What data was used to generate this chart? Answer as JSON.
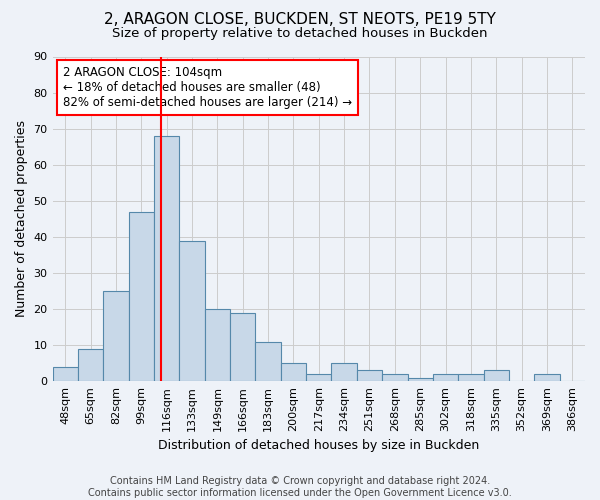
{
  "title": "2, ARAGON CLOSE, BUCKDEN, ST NEOTS, PE19 5TY",
  "subtitle": "Size of property relative to detached houses in Buckden",
  "xlabel": "Distribution of detached houses by size in Buckden",
  "ylabel": "Number of detached properties",
  "bar_values": [
    4,
    9,
    25,
    47,
    68,
    39,
    20,
    19,
    11,
    5,
    2,
    5,
    3,
    2,
    1,
    2,
    2,
    3,
    0,
    2,
    0
  ],
  "bin_labels": [
    "48sqm",
    "65sqm",
    "82sqm",
    "99sqm",
    "116sqm",
    "133sqm",
    "149sqm",
    "166sqm",
    "183sqm",
    "200sqm",
    "217sqm",
    "234sqm",
    "251sqm",
    "268sqm",
    "285sqm",
    "302sqm",
    "318sqm",
    "335sqm",
    "352sqm",
    "369sqm",
    "386sqm"
  ],
  "bar_color": "#c8d8e8",
  "bar_edge_color": "#5588aa",
  "bar_edge_width": 0.8,
  "red_line_x": 3.79,
  "annotation_text": "2 ARAGON CLOSE: 104sqm\n← 18% of detached houses are smaller (48)\n82% of semi-detached houses are larger (214) →",
  "annotation_box_color": "white",
  "annotation_box_edge_color": "red",
  "ylim": [
    0,
    90
  ],
  "yticks": [
    0,
    10,
    20,
    30,
    40,
    50,
    60,
    70,
    80,
    90
  ],
  "grid_color": "#cccccc",
  "background_color": "#eef2f8",
  "footer_text": "Contains HM Land Registry data © Crown copyright and database right 2024.\nContains public sector information licensed under the Open Government Licence v3.0.",
  "title_fontsize": 11,
  "subtitle_fontsize": 9.5,
  "xlabel_fontsize": 9,
  "ylabel_fontsize": 9,
  "tick_fontsize": 8,
  "annotation_fontsize": 8.5,
  "footer_fontsize": 7
}
